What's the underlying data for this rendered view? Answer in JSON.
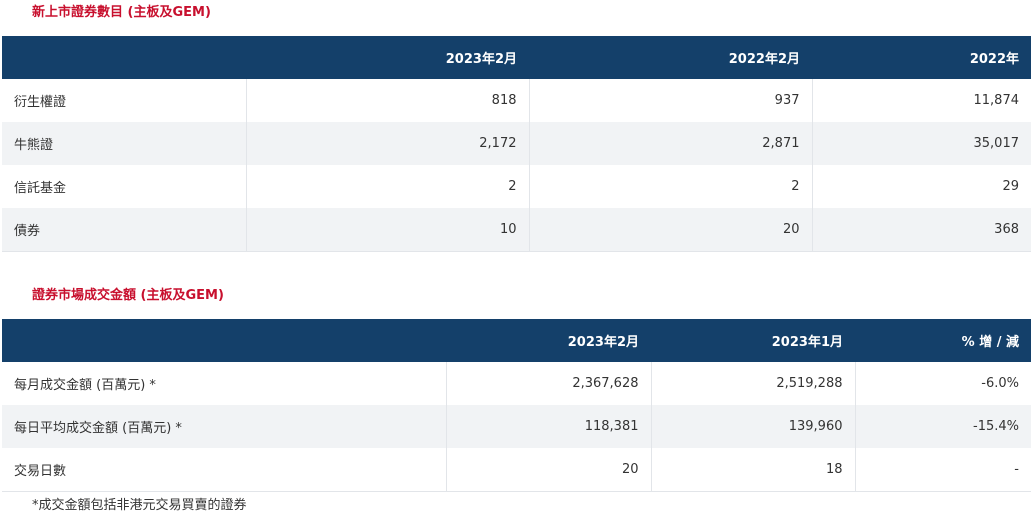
{
  "section1": {
    "title": "新上市證券數目 (主板及GEM)",
    "headers": [
      "",
      "2023年2月",
      "2022年2月",
      "2022年"
    ],
    "rows": [
      {
        "label": "衍生權證",
        "values": [
          "818",
          "937",
          "11,874"
        ]
      },
      {
        "label": "牛熊證",
        "values": [
          "2,172",
          "2,871",
          "35,017"
        ]
      },
      {
        "label": "信託基金",
        "values": [
          "2",
          "2",
          "29"
        ]
      },
      {
        "label": "債券",
        "values": [
          "10",
          "20",
          "368"
        ]
      }
    ]
  },
  "section2": {
    "title": "證券市場成交金額 (主板及GEM)",
    "headers": [
      "",
      "2023年2月",
      "2023年1月",
      "% 增 / 減"
    ],
    "rows": [
      {
        "label": "每月成交金額 (百萬元) *",
        "values": [
          "2,367,628",
          "2,519,288",
          "-6.0%"
        ]
      },
      {
        "label": "每日平均成交金額 (百萬元) *",
        "values": [
          "118,381",
          "139,960",
          "-15.4%"
        ]
      },
      {
        "label": "交易日數",
        "values": [
          "20",
          "18",
          "-"
        ]
      }
    ],
    "footnote": "*成交金額包括非港元交易買賣的證券"
  }
}
